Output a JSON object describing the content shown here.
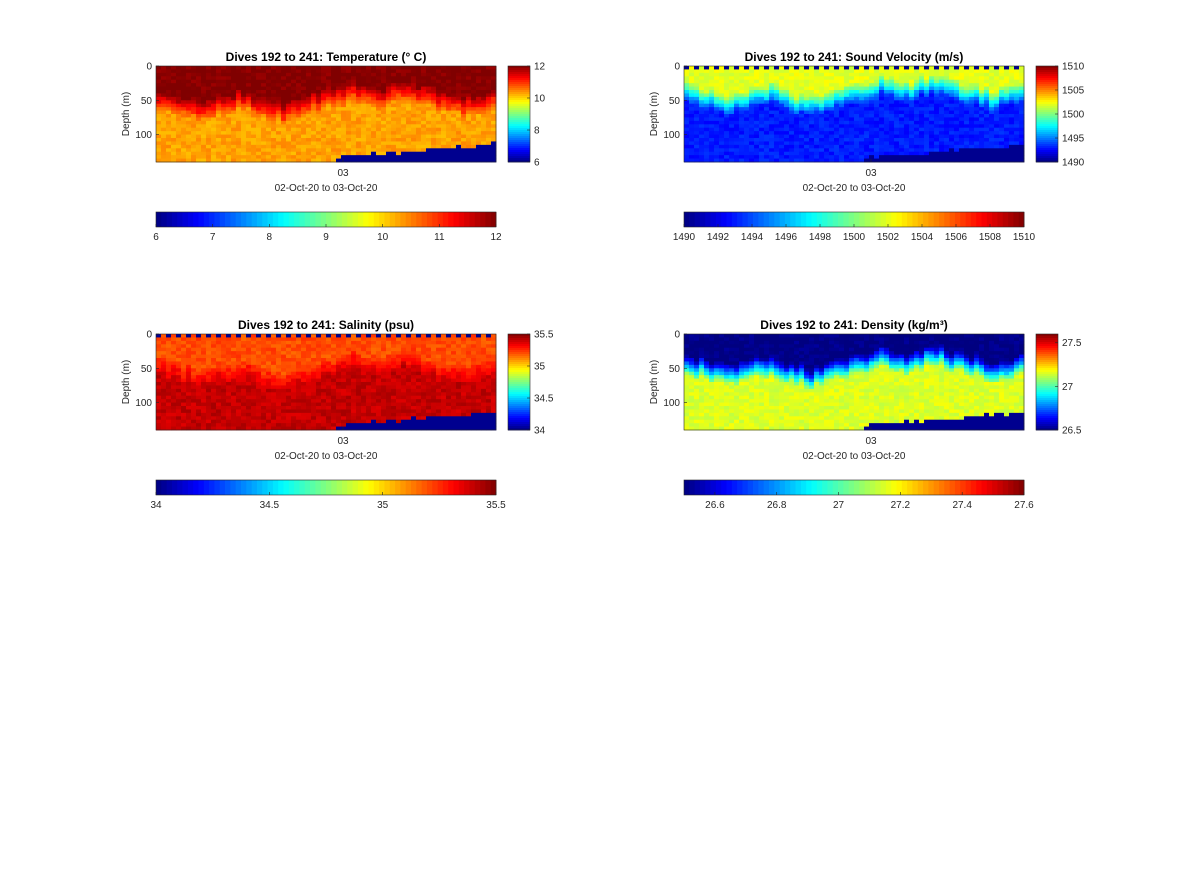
{
  "figure": {
    "panels": [
      {
        "title": "Dives 192 to 241: Temperature (° C)",
        "ylabel": "Depth (m)",
        "xtick": "03",
        "xlabel": "02-Oct-20 to 03-Oct-20"
      },
      {
        "title": "Dives 192 to 241: Sound Velocity (m/s)",
        "ylabel": "Depth (m)",
        "xtick": "03",
        "xlabel": "02-Oct-20 to 03-Oct-20"
      },
      {
        "title": "Dives 192 to 241: Salinity (psu)",
        "ylabel": "Depth (m)",
        "xtick": "03",
        "xlabel": "02-Oct-20 to 03-Oct-20"
      },
      {
        "title": "Dives 192 to 241: Density (kg/m³)",
        "ylabel": "Depth (m)",
        "xtick": "03",
        "xlabel": "02-Oct-20 to 03-Oct-20"
      }
    ]
  },
  "chart_data": [
    {
      "type": "heatmap",
      "variable": "Temperature",
      "title": "Dives 192 to 241: Temperature (° C)",
      "xlabel": "02-Oct-20 to 03-Oct-20",
      "ylabel": "Depth (m)",
      "ylim": [
        0,
        140
      ],
      "y_reversed": true,
      "y_ticks": [
        0,
        50,
        100
      ],
      "x_ticks": [
        "03"
      ],
      "colormap": "jet",
      "clim": [
        6,
        12
      ],
      "colorbar_ticks": [
        "12",
        "10",
        "8",
        "6"
      ],
      "bottom_colorbar_ticks": [
        "6",
        "7",
        "8",
        "9",
        "10",
        "11",
        "12"
      ],
      "surface_value": 12,
      "mixed_layer_depth_m": [
        50,
        55,
        60,
        70,
        60,
        55,
        50,
        60,
        65,
        70,
        60,
        55,
        50,
        45,
        40,
        45,
        50,
        40,
        35,
        45,
        50,
        55,
        60,
        55,
        50
      ],
      "deep_value": 10.3,
      "missing_data_color": "#00008f"
    },
    {
      "type": "heatmap",
      "variable": "Sound Velocity",
      "title": "Dives 192 to 241: Sound Velocity (m/s)",
      "xlabel": "02-Oct-20 to 03-Oct-20",
      "ylabel": "Depth (m)",
      "ylim": [
        0,
        140
      ],
      "y_reversed": true,
      "y_ticks": [
        0,
        50,
        100
      ],
      "x_ticks": [
        "03"
      ],
      "colormap": "jet",
      "clim": [
        1490,
        1510
      ],
      "colorbar_ticks": [
        "1510",
        "1505",
        "1500",
        "1495",
        "1490"
      ],
      "bottom_colorbar_ticks": [
        "1490",
        "1492",
        "1494",
        "1496",
        "1498",
        "1500",
        "1502",
        "1504",
        "1506",
        "1508",
        "1510"
      ],
      "surface_value": 1502,
      "mixed_layer_depth_m": [
        40,
        45,
        50,
        55,
        50,
        45,
        40,
        50,
        55,
        60,
        50,
        45,
        40,
        35,
        30,
        35,
        40,
        30,
        25,
        35,
        40,
        45,
        50,
        45,
        40
      ],
      "deep_value": 1493,
      "missing_data_color": "#00008f"
    },
    {
      "type": "heatmap",
      "variable": "Salinity",
      "title": "Dives 192 to 241: Salinity (psu)",
      "xlabel": "02-Oct-20 to 03-Oct-20",
      "ylabel": "Depth (m)",
      "ylim": [
        0,
        140
      ],
      "y_reversed": true,
      "y_ticks": [
        0,
        50,
        100
      ],
      "x_ticks": [
        "03"
      ],
      "colormap": "jet",
      "clim": [
        34,
        35.5
      ],
      "colorbar_ticks": [
        "35.5",
        "35",
        "34.5",
        "34"
      ],
      "bottom_colorbar_ticks": [
        "34",
        "34.5",
        "35",
        "35.5"
      ],
      "surface_value": 35.2,
      "mixed_layer_depth_m": [
        50,
        55,
        60,
        65,
        60,
        55,
        50,
        60,
        65,
        70,
        60,
        55,
        50,
        45,
        40,
        45,
        50,
        40,
        35,
        45,
        50,
        55,
        60,
        55,
        50
      ],
      "deep_value": 35.4,
      "missing_data_color": "#00008f"
    },
    {
      "type": "heatmap",
      "variable": "Density",
      "title": "Dives 192 to 241: Density (kg/m³)",
      "xlabel": "02-Oct-20 to 03-Oct-20",
      "ylabel": "Depth (m)",
      "ylim": [
        0,
        140
      ],
      "y_reversed": true,
      "y_ticks": [
        0,
        50,
        100
      ],
      "x_ticks": [
        "03"
      ],
      "colormap": "jet",
      "clim": [
        26.5,
        27.6
      ],
      "colorbar_ticks": [
        "27.5",
        "27",
        "26.5"
      ],
      "bottom_colorbar_ticks": [
        "26.6",
        "26.8",
        "27",
        "27.2",
        "27.4",
        "27.6"
      ],
      "surface_value": 26.5,
      "mixed_layer_depth_m": [
        45,
        50,
        55,
        60,
        55,
        50,
        45,
        55,
        60,
        65,
        55,
        50,
        45,
        40,
        35,
        40,
        45,
        35,
        30,
        40,
        45,
        50,
        55,
        50,
        45
      ],
      "deep_value": 27.15,
      "missing_data_color": "#00008f"
    }
  ]
}
